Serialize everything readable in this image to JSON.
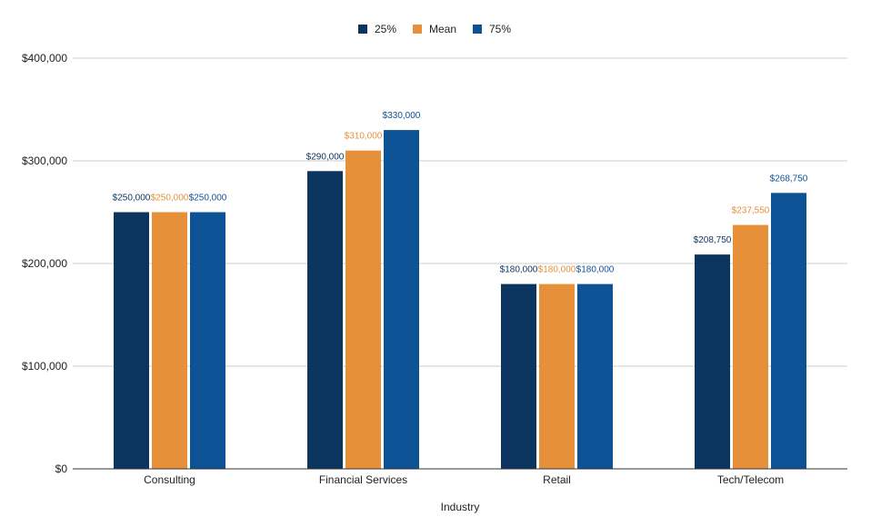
{
  "chart_data": {
    "type": "bar",
    "title": "",
    "xlabel": "Industry",
    "ylabel": "",
    "ylim": [
      0,
      400000
    ],
    "yticks": [
      0,
      100000,
      200000,
      300000,
      400000
    ],
    "ytick_labels": [
      "$0",
      "$100,000",
      "$200,000",
      "$300,000",
      "$400,000"
    ],
    "categories": [
      "Consulting",
      "Financial Services",
      "Retail",
      "Tech/Telecom"
    ],
    "legend_position": "top-center",
    "grid": true,
    "series": [
      {
        "name": "25%",
        "color": "#0b355f",
        "label_color": "#0b355f",
        "values": [
          250000,
          290000,
          180000,
          208750
        ],
        "labels": [
          "$250,000",
          "$290,000",
          "$180,000",
          "$208,750"
        ]
      },
      {
        "name": "Mean",
        "color": "#e6913a",
        "label_color": "#e6913a",
        "values": [
          250000,
          310000,
          180000,
          237550
        ],
        "labels": [
          "$250,000",
          "$310,000",
          "$180,000",
          "$237,550"
        ]
      },
      {
        "name": "75%",
        "color": "#0e5296",
        "label_color": "#0e5296",
        "values": [
          250000,
          330000,
          180000,
          268750
        ],
        "labels": [
          "$250,000",
          "$330,000",
          "$180,000",
          "$268,750"
        ]
      }
    ]
  }
}
